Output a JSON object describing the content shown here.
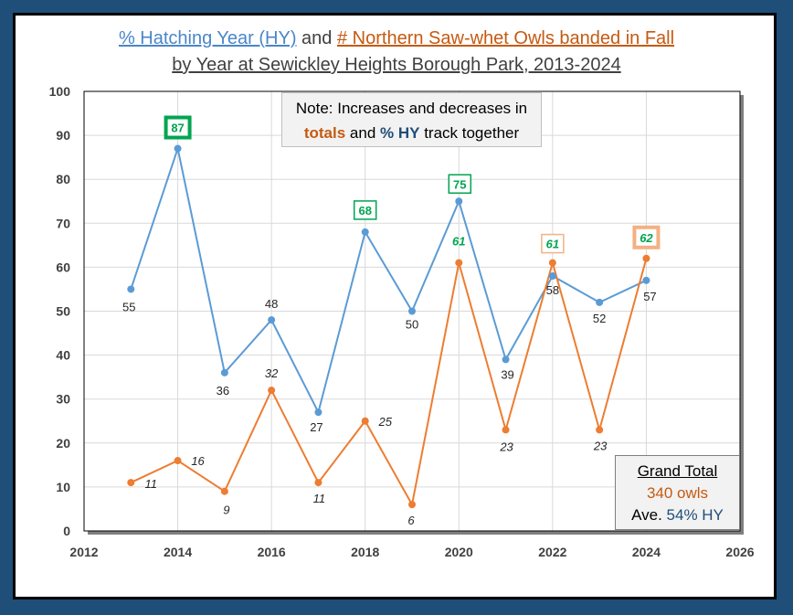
{
  "title": {
    "part1": "% Hatching Year (HY)",
    "and": " and ",
    "part2": "# Northern Saw-whet Owls banded in Fall",
    "line2": "by Year at Sewickley Heights Borough Park, 2013-2024"
  },
  "note": {
    "line1": "Note: Increases and decreases in",
    "totals": "totals",
    "and": " and ",
    "hy": "% HY",
    "rest": " track together"
  },
  "grand_total": {
    "title": "Grand Total",
    "owls": "340 owls",
    "ave_prefix": "Ave. ",
    "ave_value": "54% HY"
  },
  "colors": {
    "hy_series": "#5b9bd5",
    "owls_series": "#ed7d31",
    "highlight_green": "#00a550",
    "highlight_orange": "#f4b183"
  },
  "chart_data": {
    "type": "line",
    "title": "% Hatching Year (HY) and # Northern Saw-whet Owls banded in Fall by Year at Sewickley Heights Borough Park, 2013-2024",
    "xlim": [
      2012,
      2026
    ],
    "ylim": [
      0,
      100
    ],
    "x_ticks": [
      "2012",
      "2014",
      "2016",
      "2018",
      "2020",
      "2022",
      "2024",
      "2026"
    ],
    "y_ticks": [
      "0",
      "10",
      "20",
      "30",
      "40",
      "50",
      "60",
      "70",
      "80",
      "90",
      "100"
    ],
    "series": [
      {
        "name": "% Hatching Year (HY)",
        "x": [
          2013,
          2014,
          2015,
          2016,
          2017,
          2018,
          2019,
          2020,
          2021,
          2022,
          2023,
          2024
        ],
        "values": [
          55,
          87,
          36,
          48,
          27,
          68,
          50,
          75,
          39,
          58,
          52,
          57
        ],
        "labels": [
          "55",
          "87",
          "36",
          "48",
          "27",
          "68",
          "50",
          "75",
          "39",
          "58",
          "52",
          "57"
        ]
      },
      {
        "name": "# Northern Saw-whet Owls banded",
        "x": [
          2013,
          2014,
          2015,
          2016,
          2017,
          2018,
          2019,
          2020,
          2021,
          2022,
          2023,
          2024
        ],
        "values": [
          11,
          16,
          9,
          32,
          11,
          25,
          6,
          61,
          23,
          61,
          23,
          62
        ],
        "labels": [
          "11",
          "16",
          "9",
          "32",
          "11",
          "25",
          "6",
          "61",
          "23",
          "61",
          "23",
          "62"
        ]
      }
    ]
  }
}
